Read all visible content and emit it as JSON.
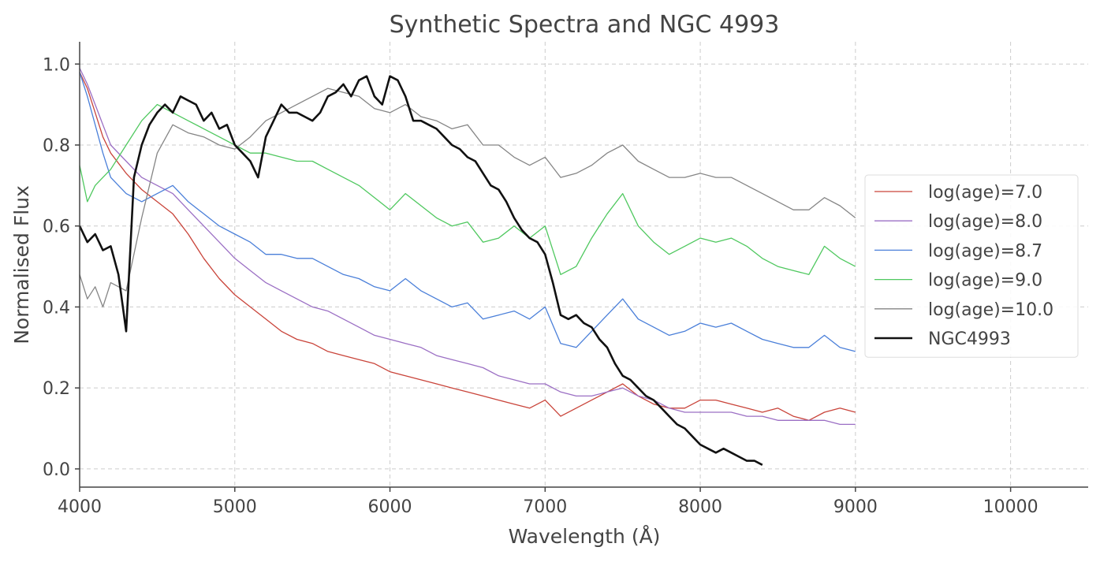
{
  "chart_data": {
    "type": "line",
    "title": "Synthetic Spectra and NGC 4993",
    "xlabel": "Wavelength (Å)",
    "ylabel": "Normalised Flux",
    "xlim": [
      4000,
      10500
    ],
    "ylim": [
      -0.045,
      1.055
    ],
    "xticks": [
      4000,
      5000,
      6000,
      7000,
      8000,
      9000,
      10000
    ],
    "yticks": [
      0.0,
      0.2,
      0.4,
      0.6,
      0.8,
      1.0
    ],
    "xtick_labels": [
      "4000",
      "5000",
      "6000",
      "7000",
      "8000",
      "9000",
      "10000"
    ],
    "ytick_labels": [
      "0.0",
      "0.2",
      "0.4",
      "0.6",
      "0.8",
      "1.0"
    ],
    "grid": true,
    "legend_position": "center-right",
    "series": [
      {
        "name": "log(age)=7.0",
        "color": "#c9443a",
        "x": [
          4000,
          4050,
          4100,
          4150,
          4200,
          4300,
          4400,
          4500,
          4600,
          4700,
          4800,
          4900,
          5000,
          5100,
          5200,
          5300,
          5400,
          5500,
          5600,
          5700,
          5800,
          5900,
          6000,
          6100,
          6200,
          6300,
          6400,
          6500,
          6600,
          6700,
          6800,
          6900,
          7000,
          7100,
          7200,
          7300,
          7400,
          7500,
          7600,
          7700,
          7800,
          7900,
          8000,
          8100,
          8200,
          8300,
          8400,
          8500,
          8600,
          8700,
          8800,
          8900,
          9000
        ],
        "y": [
          0.98,
          0.94,
          0.88,
          0.82,
          0.78,
          0.73,
          0.69,
          0.66,
          0.63,
          0.58,
          0.52,
          0.47,
          0.43,
          0.4,
          0.37,
          0.34,
          0.32,
          0.31,
          0.29,
          0.28,
          0.27,
          0.26,
          0.24,
          0.23,
          0.22,
          0.21,
          0.2,
          0.19,
          0.18,
          0.17,
          0.16,
          0.15,
          0.17,
          0.13,
          0.15,
          0.17,
          0.19,
          0.21,
          0.18,
          0.16,
          0.15,
          0.15,
          0.17,
          0.17,
          0.16,
          0.15,
          0.14,
          0.15,
          0.13,
          0.12,
          0.14,
          0.15,
          0.14
        ]
      },
      {
        "name": "log(age)=8.0",
        "color": "#9b6fc4",
        "x": [
          4000,
          4050,
          4100,
          4150,
          4200,
          4300,
          4400,
          4500,
          4600,
          4700,
          4800,
          4900,
          5000,
          5100,
          5200,
          5300,
          5400,
          5500,
          5600,
          5700,
          5800,
          5900,
          6000,
          6100,
          6200,
          6300,
          6400,
          6500,
          6600,
          6700,
          6800,
          6900,
          7000,
          7100,
          7200,
          7300,
          7400,
          7500,
          7600,
          7700,
          7800,
          7900,
          8000,
          8100,
          8200,
          8300,
          8400,
          8500,
          8600,
          8700,
          8800,
          8900,
          9000
        ],
        "y": [
          0.99,
          0.95,
          0.9,
          0.85,
          0.8,
          0.76,
          0.72,
          0.7,
          0.68,
          0.64,
          0.6,
          0.56,
          0.52,
          0.49,
          0.46,
          0.44,
          0.42,
          0.4,
          0.39,
          0.37,
          0.35,
          0.33,
          0.32,
          0.31,
          0.3,
          0.28,
          0.27,
          0.26,
          0.25,
          0.23,
          0.22,
          0.21,
          0.21,
          0.19,
          0.18,
          0.18,
          0.19,
          0.2,
          0.18,
          0.17,
          0.15,
          0.14,
          0.14,
          0.14,
          0.14,
          0.13,
          0.13,
          0.12,
          0.12,
          0.12,
          0.12,
          0.11,
          0.11
        ]
      },
      {
        "name": "log(age)=8.7",
        "color": "#4a7fd9",
        "x": [
          4000,
          4050,
          4100,
          4150,
          4200,
          4300,
          4400,
          4500,
          4600,
          4700,
          4800,
          4900,
          5000,
          5100,
          5200,
          5300,
          5400,
          5500,
          5600,
          5700,
          5800,
          5900,
          6000,
          6100,
          6200,
          6300,
          6400,
          6500,
          6600,
          6700,
          6800,
          6900,
          7000,
          7100,
          7200,
          7300,
          7400,
          7500,
          7600,
          7700,
          7800,
          7900,
          8000,
          8100,
          8200,
          8300,
          8400,
          8500,
          8600,
          8700,
          8800,
          8900,
          9000
        ],
        "y": [
          0.98,
          0.92,
          0.85,
          0.78,
          0.72,
          0.68,
          0.66,
          0.68,
          0.7,
          0.66,
          0.63,
          0.6,
          0.58,
          0.56,
          0.53,
          0.53,
          0.52,
          0.52,
          0.5,
          0.48,
          0.47,
          0.45,
          0.44,
          0.47,
          0.44,
          0.42,
          0.4,
          0.41,
          0.37,
          0.38,
          0.39,
          0.37,
          0.4,
          0.31,
          0.3,
          0.34,
          0.38,
          0.42,
          0.37,
          0.35,
          0.33,
          0.34,
          0.36,
          0.35,
          0.36,
          0.34,
          0.32,
          0.31,
          0.3,
          0.3,
          0.33,
          0.3,
          0.29
        ]
      },
      {
        "name": "log(age)=9.0",
        "color": "#4fc85f",
        "x": [
          4000,
          4050,
          4100,
          4150,
          4200,
          4300,
          4400,
          4500,
          4600,
          4700,
          4800,
          4900,
          5000,
          5100,
          5200,
          5300,
          5400,
          5500,
          5600,
          5700,
          5800,
          5900,
          6000,
          6100,
          6200,
          6300,
          6400,
          6500,
          6600,
          6700,
          6800,
          6900,
          7000,
          7100,
          7200,
          7300,
          7400,
          7500,
          7600,
          7700,
          7800,
          7900,
          8000,
          8100,
          8200,
          8300,
          8400,
          8500,
          8600,
          8700,
          8800,
          8900,
          9000
        ],
        "y": [
          0.75,
          0.66,
          0.7,
          0.72,
          0.74,
          0.8,
          0.86,
          0.9,
          0.88,
          0.86,
          0.84,
          0.82,
          0.8,
          0.78,
          0.78,
          0.77,
          0.76,
          0.76,
          0.74,
          0.72,
          0.7,
          0.67,
          0.64,
          0.68,
          0.65,
          0.62,
          0.6,
          0.61,
          0.56,
          0.57,
          0.6,
          0.57,
          0.6,
          0.48,
          0.5,
          0.57,
          0.63,
          0.68,
          0.6,
          0.56,
          0.53,
          0.55,
          0.57,
          0.56,
          0.57,
          0.55,
          0.52,
          0.5,
          0.49,
          0.48,
          0.55,
          0.52,
          0.5
        ]
      },
      {
        "name": "log(age)=10.0",
        "color": "#858585",
        "x": [
          4000,
          4050,
          4100,
          4150,
          4200,
          4300,
          4400,
          4500,
          4600,
          4700,
          4800,
          4900,
          5000,
          5100,
          5200,
          5300,
          5400,
          5500,
          5600,
          5700,
          5800,
          5900,
          6000,
          6100,
          6200,
          6300,
          6400,
          6500,
          6600,
          6700,
          6800,
          6900,
          7000,
          7100,
          7200,
          7300,
          7400,
          7500,
          7600,
          7700,
          7800,
          7900,
          8000,
          8100,
          8200,
          8300,
          8400,
          8500,
          8600,
          8700,
          8800,
          8900,
          9000
        ],
        "y": [
          0.48,
          0.42,
          0.45,
          0.4,
          0.46,
          0.44,
          0.62,
          0.78,
          0.85,
          0.83,
          0.82,
          0.8,
          0.79,
          0.82,
          0.86,
          0.88,
          0.9,
          0.92,
          0.94,
          0.93,
          0.92,
          0.89,
          0.88,
          0.9,
          0.87,
          0.86,
          0.84,
          0.85,
          0.8,
          0.8,
          0.77,
          0.75,
          0.77,
          0.72,
          0.73,
          0.75,
          0.78,
          0.8,
          0.76,
          0.74,
          0.72,
          0.72,
          0.73,
          0.72,
          0.72,
          0.7,
          0.68,
          0.66,
          0.64,
          0.64,
          0.67,
          0.65,
          0.62
        ]
      },
      {
        "name": "NGC4993",
        "color": "#111111",
        "x": [
          4000,
          4050,
          4100,
          4150,
          4200,
          4250,
          4300,
          4350,
          4400,
          4450,
          4500,
          4550,
          4600,
          4650,
          4700,
          4750,
          4800,
          4850,
          4900,
          4950,
          5000,
          5050,
          5100,
          5150,
          5200,
          5250,
          5300,
          5350,
          5400,
          5450,
          5500,
          5550,
          5600,
          5650,
          5700,
          5750,
          5800,
          5850,
          5900,
          5950,
          6000,
          6050,
          6100,
          6150,
          6200,
          6250,
          6300,
          6350,
          6400,
          6450,
          6500,
          6550,
          6600,
          6650,
          6700,
          6750,
          6800,
          6850,
          6900,
          6950,
          7000,
          7050,
          7100,
          7150,
          7200,
          7250,
          7300,
          7350,
          7400,
          7450,
          7500,
          7550,
          7600,
          7650,
          7700,
          7750,
          7800,
          7850,
          7900,
          7950,
          8000,
          8050,
          8100,
          8150,
          8200,
          8250,
          8300,
          8350,
          8400
        ],
        "y": [
          0.6,
          0.56,
          0.58,
          0.54,
          0.55,
          0.48,
          0.34,
          0.72,
          0.8,
          0.85,
          0.88,
          0.9,
          0.88,
          0.92,
          0.91,
          0.9,
          0.86,
          0.88,
          0.84,
          0.85,
          0.8,
          0.78,
          0.76,
          0.72,
          0.82,
          0.86,
          0.9,
          0.88,
          0.88,
          0.87,
          0.86,
          0.88,
          0.92,
          0.93,
          0.95,
          0.92,
          0.96,
          0.97,
          0.92,
          0.9,
          0.97,
          0.96,
          0.92,
          0.86,
          0.86,
          0.85,
          0.84,
          0.82,
          0.8,
          0.79,
          0.77,
          0.76,
          0.73,
          0.7,
          0.69,
          0.66,
          0.62,
          0.59,
          0.57,
          0.56,
          0.53,
          0.46,
          0.38,
          0.37,
          0.38,
          0.36,
          0.35,
          0.32,
          0.3,
          0.26,
          0.23,
          0.22,
          0.2,
          0.18,
          0.17,
          0.15,
          0.13,
          0.11,
          0.1,
          0.08,
          0.06,
          0.05,
          0.04,
          0.05,
          0.04,
          0.03,
          0.02,
          0.02,
          0.01
        ]
      }
    ]
  }
}
